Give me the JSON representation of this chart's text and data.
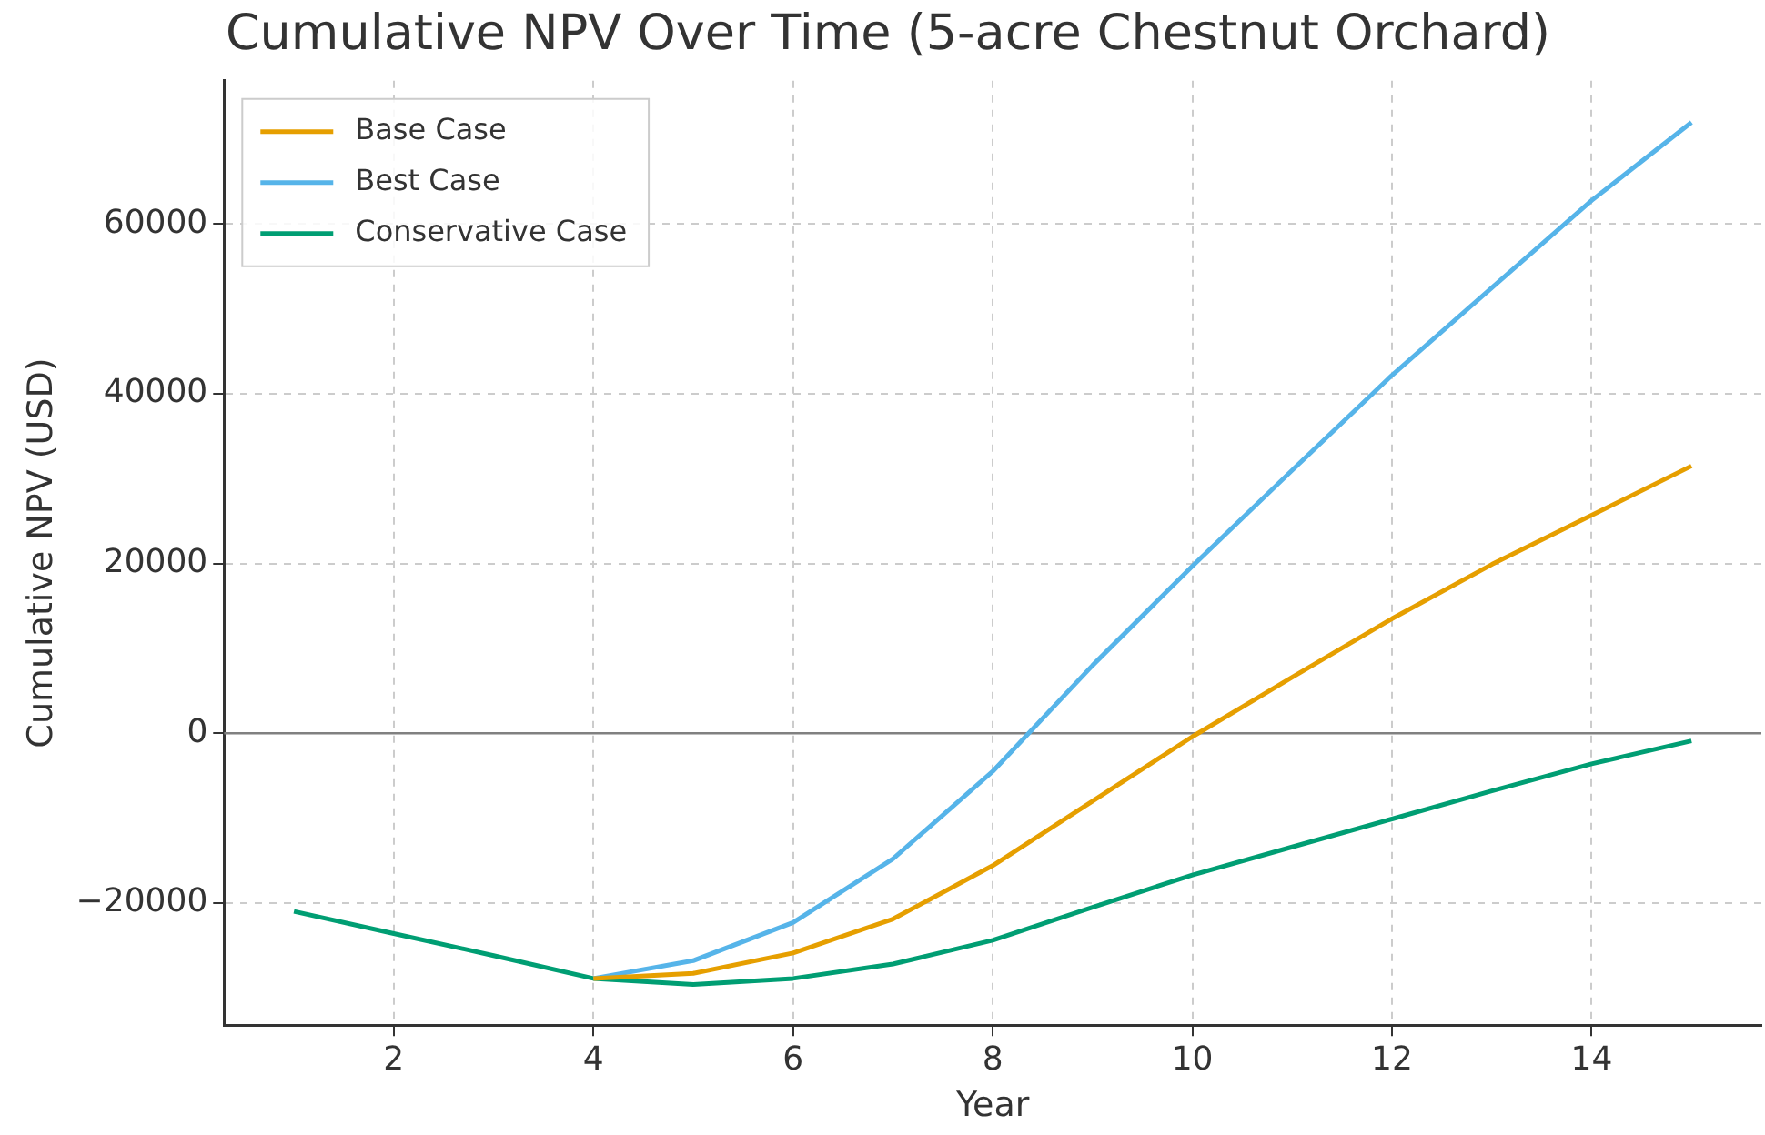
{
  "chart_data": {
    "type": "line",
    "title": "Cumulative NPV Over Time (5-acre Chestnut Orchard)",
    "xlabel": "Year",
    "ylabel": "Cumulative NPV (USD)",
    "x": [
      1,
      2,
      3,
      4,
      5,
      6,
      7,
      8,
      9,
      10,
      11,
      12,
      13,
      14,
      15
    ],
    "series": [
      {
        "name": "Base Case",
        "color": "#e69f00",
        "values": [
          null,
          null,
          null,
          -28900,
          -28300,
          -25900,
          -21900,
          -15600,
          -8000,
          -400,
          6600,
          13500,
          19900,
          25700,
          31500
        ]
      },
      {
        "name": "Best Case",
        "color": "#56b4e9",
        "values": [
          null,
          null,
          null,
          -28900,
          -26800,
          -22300,
          -14800,
          -4500,
          8000,
          19700,
          31000,
          42200,
          52500,
          62800,
          72000
        ]
      },
      {
        "name": "Conservative Case",
        "color": "#009e73",
        "values": [
          -21000,
          -23600,
          -26200,
          -28900,
          -29600,
          -28900,
          -27200,
          -24400,
          -20500,
          -16700,
          -13400,
          -10100,
          -6800,
          -3600,
          -900
        ]
      }
    ],
    "xlim": [
      0.3,
      15.7
    ],
    "ylim": [
      -34400,
      76900
    ],
    "xticks": [
      2,
      4,
      6,
      8,
      10,
      12,
      14
    ],
    "yticks": [
      -20000,
      0,
      20000,
      40000,
      60000
    ],
    "ref_lines": [
      {
        "axis": "y",
        "value": 0,
        "color": "#808080"
      }
    ],
    "grid": true,
    "legend": "top left",
    "marker": "none",
    "line_style": "solid"
  }
}
